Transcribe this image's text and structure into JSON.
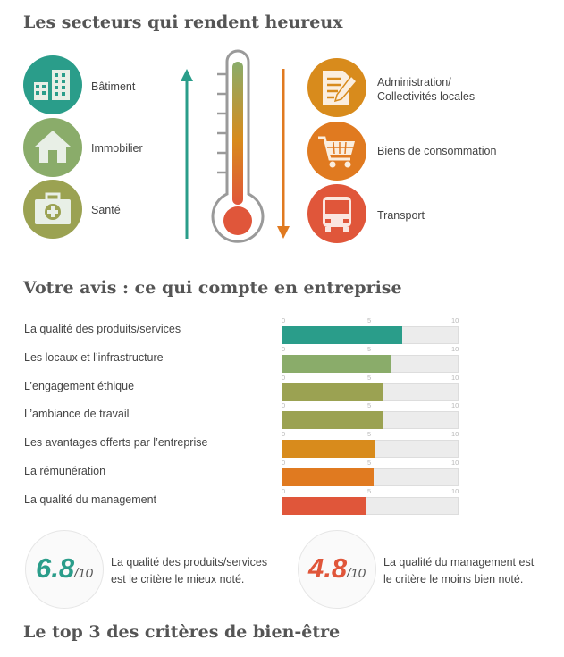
{
  "heading_sectors": "Les secteurs qui rendent heureux",
  "heading_opinion": "Votre avis : ce qui compte en entreprise",
  "heading_top3": "Le top 3 des critères de bien-être",
  "sectors_left": [
    {
      "label": "Bâtiment",
      "icon": "building-icon",
      "color": "#2a9d8a"
    },
    {
      "label": "Immobilier",
      "icon": "house-icon",
      "color": "#8aac6a"
    },
    {
      "label": "Santé",
      "icon": "medical-kit-icon",
      "color": "#9ba252"
    }
  ],
  "sectors_right": [
    {
      "label_line1": "Administration/",
      "label_line2": "Collectivités locales",
      "icon": "document-pen-icon",
      "color": "#d88b1c"
    },
    {
      "label_line1": "Biens de consommation",
      "label_line2": "",
      "icon": "shopping-cart-icon",
      "color": "#e07a20"
    },
    {
      "label_line1": "Transport",
      "label_line2": "",
      "icon": "bus-icon",
      "color": "#e0563a"
    }
  ],
  "colors": {
    "green_arrow": "#2a9d8a",
    "orange_arrow": "#e07a20",
    "thermo_top": "#8aac6a",
    "thermo_mid": "#d88b1c",
    "thermo_bulb": "#e0563a"
  },
  "chart_data": {
    "type": "bar",
    "orientation": "horizontal",
    "xlim": [
      0,
      10
    ],
    "ticks": [
      "0",
      "5",
      "10"
    ],
    "categories": [
      "La qualité des produits/services",
      "Les locaux et l’infrastructure",
      "L’engagement éthique",
      "L’ambiance de travail",
      "Les avantages offerts par l’entreprise",
      "La rémunération",
      "La qualité du management"
    ],
    "values": [
      6.8,
      6.2,
      5.7,
      5.7,
      5.3,
      5.2,
      4.8
    ],
    "colors": [
      "#2a9d8a",
      "#8aac6a",
      "#9ba252",
      "#9ba252",
      "#d88b1c",
      "#e07a20",
      "#e0563a"
    ]
  },
  "scores": [
    {
      "value": "6.8",
      "suffix": "/10",
      "color": "#2a9d8a",
      "line1": "La qualité des produits/services",
      "line2": "est le critère le mieux noté."
    },
    {
      "value": "4.8",
      "suffix": "/10",
      "color": "#e0563a",
      "line1": "La qualité du management est",
      "line2": "le critère le moins bien noté."
    }
  ]
}
